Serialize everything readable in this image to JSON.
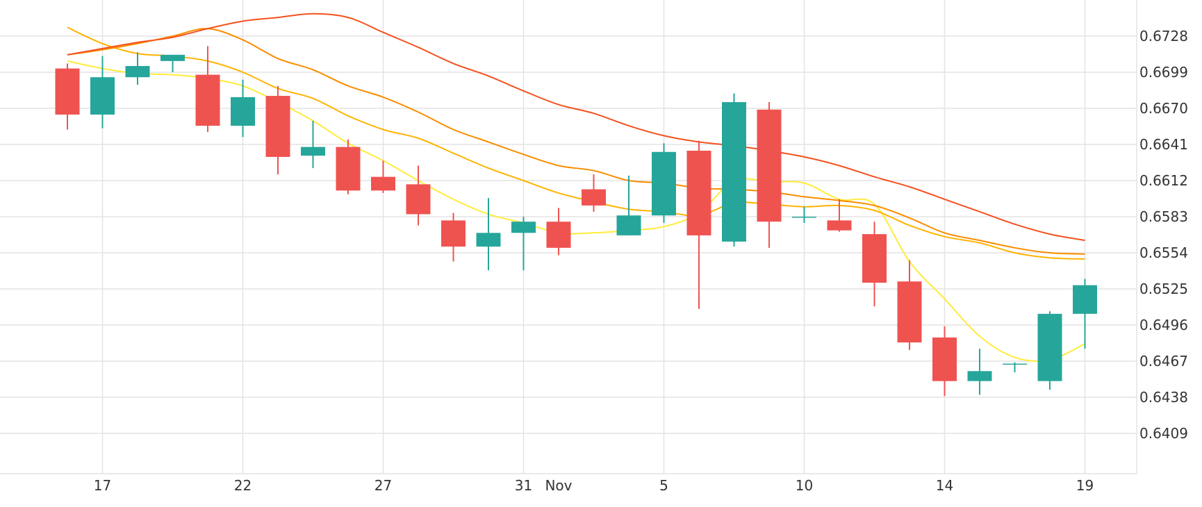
{
  "chart_data": {
    "type": "candlestick",
    "title": "",
    "xlabel": "",
    "ylabel": "",
    "grid": true,
    "y_axis_position": "right",
    "ylim": [
      0.638,
      0.675
    ],
    "y_ticks": [
      "0.6409",
      "0.6438",
      "0.6467",
      "0.6496",
      "0.6525",
      "0.6554",
      "0.6583",
      "0.6612",
      "0.6641",
      "0.6670",
      "0.6699",
      "0.6728"
    ],
    "x_ticks": [
      {
        "label": "17",
        "index": 1
      },
      {
        "label": "22",
        "index": 5
      },
      {
        "label": "27",
        "index": 9
      },
      {
        "label": "31",
        "index": 13
      },
      {
        "label": "Nov",
        "index": 14
      },
      {
        "label": "5",
        "index": 17
      },
      {
        "label": "10",
        "index": 21
      },
      {
        "label": "14",
        "index": 25
      },
      {
        "label": "19",
        "index": 29
      }
    ],
    "colors": {
      "up": "#26a69a",
      "down": "#ef5350",
      "grid": "#e3e3e3",
      "ma_fast": "#ffeb3b",
      "ma_mid1": "#ffb300",
      "ma_mid2": "#fb8c00",
      "ma_slow": "#f4511e"
    },
    "candles": [
      {
        "o": 0.6702,
        "h": 0.6706,
        "l": 0.6653,
        "c": 0.6665
      },
      {
        "o": 0.6665,
        "h": 0.6712,
        "l": 0.6654,
        "c": 0.6695
      },
      {
        "o": 0.6695,
        "h": 0.6715,
        "l": 0.6689,
        "c": 0.6704
      },
      {
        "o": 0.6708,
        "h": 0.6712,
        "l": 0.6699,
        "c": 0.6713
      },
      {
        "o": 0.6697,
        "h": 0.672,
        "l": 0.6651,
        "c": 0.6656
      },
      {
        "o": 0.6656,
        "h": 0.6693,
        "l": 0.6647,
        "c": 0.6679
      },
      {
        "o": 0.668,
        "h": 0.6688,
        "l": 0.6617,
        "c": 0.6631
      },
      {
        "o": 0.6632,
        "h": 0.666,
        "l": 0.6622,
        "c": 0.6639
      },
      {
        "o": 0.6639,
        "h": 0.6645,
        "l": 0.6601,
        "c": 0.6604
      },
      {
        "o": 0.6615,
        "h": 0.6628,
        "l": 0.6602,
        "c": 0.6604
      },
      {
        "o": 0.6609,
        "h": 0.6624,
        "l": 0.6576,
        "c": 0.6585
      },
      {
        "o": 0.658,
        "h": 0.6586,
        "l": 0.6547,
        "c": 0.6559
      },
      {
        "o": 0.6559,
        "h": 0.6598,
        "l": 0.654,
        "c": 0.657
      },
      {
        "o": 0.657,
        "h": 0.6583,
        "l": 0.654,
        "c": 0.6579
      },
      {
        "o": 0.6579,
        "h": 0.659,
        "l": 0.6552,
        "c": 0.6558
      },
      {
        "o": 0.6605,
        "h": 0.6617,
        "l": 0.6587,
        "c": 0.6592
      },
      {
        "o": 0.6568,
        "h": 0.6616,
        "l": 0.6568,
        "c": 0.6584
      },
      {
        "o": 0.6584,
        "h": 0.6642,
        "l": 0.6578,
        "c": 0.6635
      },
      {
        "o": 0.6636,
        "h": 0.6644,
        "l": 0.6509,
        "c": 0.6568
      },
      {
        "o": 0.6563,
        "h": 0.6682,
        "l": 0.6559,
        "c": 0.6675
      },
      {
        "o": 0.6669,
        "h": 0.6675,
        "l": 0.6558,
        "c": 0.6579
      },
      {
        "o": 0.6583,
        "h": 0.6591,
        "l": 0.6578,
        "c": 0.6583
      },
      {
        "o": 0.658,
        "h": 0.6597,
        "l": 0.6571,
        "c": 0.6572
      },
      {
        "o": 0.6569,
        "h": 0.6579,
        "l": 0.6511,
        "c": 0.653
      },
      {
        "o": 0.6531,
        "h": 0.6548,
        "l": 0.6476,
        "c": 0.6482
      },
      {
        "o": 0.6486,
        "h": 0.6495,
        "l": 0.6439,
        "c": 0.6451
      },
      {
        "o": 0.6451,
        "h": 0.6477,
        "l": 0.644,
        "c": 0.6459
      },
      {
        "o": 0.6465,
        "h": 0.6466,
        "l": 0.6458,
        "c": 0.6465
      },
      {
        "o": 0.6451,
        "h": 0.6507,
        "l": 0.6444,
        "c": 0.6505
      },
      {
        "o": 0.6505,
        "h": 0.6533,
        "l": 0.6477,
        "c": 0.6528
      }
    ],
    "series": [
      {
        "role": "ma_fast",
        "points": [
          [
            0,
            0.6708
          ],
          [
            1,
            0.6702
          ],
          [
            2,
            0.6698
          ],
          [
            3,
            0.6697
          ],
          [
            4,
            0.6694
          ],
          [
            5,
            0.6688
          ],
          [
            6,
            0.6675
          ],
          [
            7,
            0.666
          ],
          [
            8,
            0.6642
          ],
          [
            9,
            0.6628
          ],
          [
            10,
            0.6612
          ],
          [
            11,
            0.6597
          ],
          [
            12,
            0.6585
          ],
          [
            13,
            0.6578
          ],
          [
            14,
            0.657
          ],
          [
            15,
            0.657
          ],
          [
            16,
            0.6572
          ],
          [
            17,
            0.6575
          ],
          [
            18,
            0.6586
          ],
          [
            19,
            0.6612
          ],
          [
            20,
            0.6611
          ],
          [
            21,
            0.661
          ],
          [
            22,
            0.6597
          ],
          [
            23,
            0.6593
          ],
          [
            24,
            0.6547
          ],
          [
            25,
            0.6517
          ],
          [
            26,
            0.6487
          ],
          [
            27,
            0.647
          ],
          [
            28,
            0.6468
          ],
          [
            29,
            0.6481
          ]
        ]
      },
      {
        "role": "ma_mid1",
        "points": [
          [
            0,
            0.6735
          ],
          [
            1,
            0.6722
          ],
          [
            2,
            0.6714
          ],
          [
            3,
            0.6712
          ],
          [
            4,
            0.6708
          ],
          [
            5,
            0.6699
          ],
          [
            6,
            0.6686
          ],
          [
            7,
            0.6678
          ],
          [
            8,
            0.6664
          ],
          [
            9,
            0.6653
          ],
          [
            10,
            0.6646
          ],
          [
            11,
            0.6634
          ],
          [
            12,
            0.6622
          ],
          [
            13,
            0.6612
          ],
          [
            14,
            0.6602
          ],
          [
            15,
            0.6595
          ],
          [
            16,
            0.6589
          ],
          [
            17,
            0.6587
          ],
          [
            18,
            0.6584
          ],
          [
            19,
            0.6594
          ],
          [
            20,
            0.6593
          ],
          [
            21,
            0.6591
          ],
          [
            22,
            0.6592
          ],
          [
            23,
            0.6588
          ],
          [
            24,
            0.6576
          ],
          [
            25,
            0.6567
          ],
          [
            26,
            0.6562
          ],
          [
            27,
            0.6554
          ],
          [
            28,
            0.655
          ],
          [
            29,
            0.6549
          ]
        ]
      },
      {
        "role": "ma_mid2",
        "points": [
          [
            0,
            0.6713
          ],
          [
            1,
            0.6717
          ],
          [
            2,
            0.6722
          ],
          [
            3,
            0.6728
          ],
          [
            4,
            0.6734
          ],
          [
            5,
            0.6725
          ],
          [
            6,
            0.671
          ],
          [
            7,
            0.6701
          ],
          [
            8,
            0.6688
          ],
          [
            9,
            0.6679
          ],
          [
            10,
            0.6667
          ],
          [
            11,
            0.6653
          ],
          [
            12,
            0.6643
          ],
          [
            13,
            0.6633
          ],
          [
            14,
            0.6624
          ],
          [
            15,
            0.662
          ],
          [
            16,
            0.6612
          ],
          [
            17,
            0.661
          ],
          [
            18,
            0.6606
          ],
          [
            19,
            0.6605
          ],
          [
            20,
            0.6603
          ],
          [
            21,
            0.6599
          ],
          [
            22,
            0.6596
          ],
          [
            23,
            0.6592
          ],
          [
            24,
            0.6582
          ],
          [
            25,
            0.657
          ],
          [
            26,
            0.6564
          ],
          [
            27,
            0.6558
          ],
          [
            28,
            0.6554
          ],
          [
            29,
            0.6553
          ]
        ]
      },
      {
        "role": "ma_slow",
        "points": [
          [
            0,
            0.6713
          ],
          [
            1,
            0.6718
          ],
          [
            2,
            0.6723
          ],
          [
            3,
            0.6727
          ],
          [
            4,
            0.6734
          ],
          [
            5,
            0.674
          ],
          [
            6,
            0.6743
          ],
          [
            7,
            0.6746
          ],
          [
            8,
            0.6743
          ],
          [
            9,
            0.6731
          ],
          [
            10,
            0.6719
          ],
          [
            11,
            0.6706
          ],
          [
            12,
            0.6696
          ],
          [
            13,
            0.6684
          ],
          [
            14,
            0.6673
          ],
          [
            15,
            0.6666
          ],
          [
            16,
            0.6656
          ],
          [
            17,
            0.6648
          ],
          [
            18,
            0.6643
          ],
          [
            19,
            0.664
          ],
          [
            20,
            0.6636
          ],
          [
            21,
            0.6631
          ],
          [
            22,
            0.6624
          ],
          [
            23,
            0.6615
          ],
          [
            24,
            0.6607
          ],
          [
            25,
            0.6597
          ],
          [
            26,
            0.6587
          ],
          [
            27,
            0.6577
          ],
          [
            28,
            0.6569
          ],
          [
            29,
            0.6564
          ]
        ]
      }
    ]
  }
}
